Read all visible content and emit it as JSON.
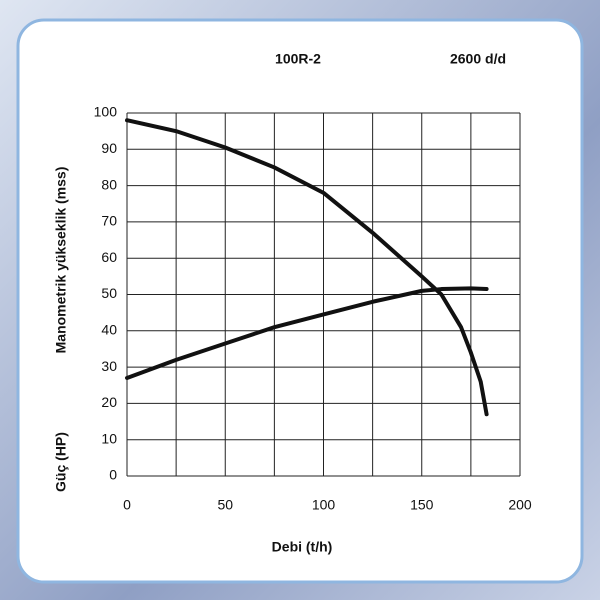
{
  "chart_data": {
    "type": "line",
    "title": "100R-2",
    "subtitle": "2600 d/d",
    "ylabel": "Manometrik yükseklik (mss)",
    "y2label": "Güç (HP)",
    "xlabel": "Debi (t/h)",
    "series": [
      {
        "color": "#111111",
        "x": [
          0,
          25,
          50,
          75,
          100,
          125,
          150,
          160,
          170,
          175,
          180,
          183
        ],
        "values": [
          98,
          95,
          90.5,
          85,
          78,
          67,
          55,
          50,
          41,
          34,
          26,
          17
        ]
      },
      {
        "color": "#111111",
        "x": [
          0,
          25,
          50,
          75,
          100,
          125,
          150,
          160,
          175,
          183
        ],
        "values": [
          27,
          32,
          36.5,
          41,
          44.5,
          48,
          51,
          51.5,
          51.7,
          51.5
        ]
      }
    ],
    "xlim": [
      0,
      200
    ],
    "xticks": [
      0,
      50,
      100,
      150,
      200
    ],
    "xminorticks": [
      25,
      75,
      125,
      175
    ],
    "ylim": [
      0,
      100
    ],
    "yticks": [
      0,
      10,
      20,
      30,
      40,
      50,
      60,
      70,
      80,
      90,
      100
    ],
    "grid": true
  }
}
